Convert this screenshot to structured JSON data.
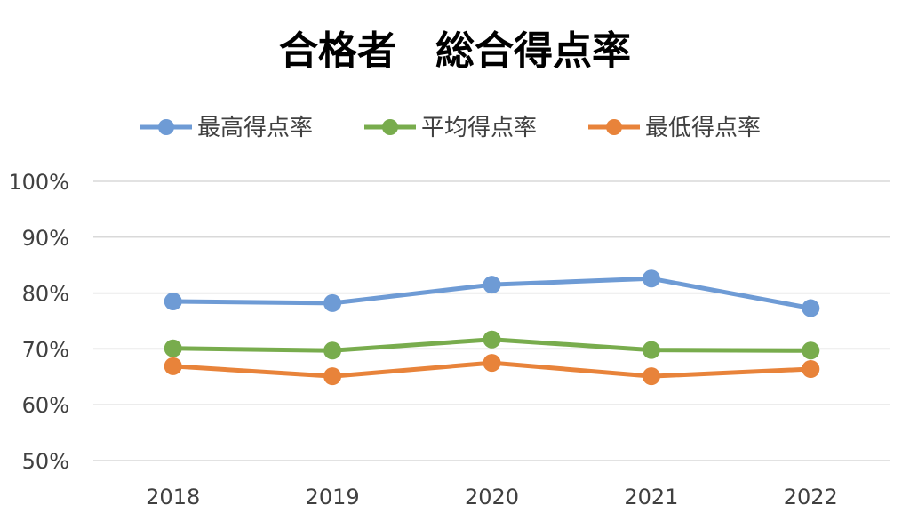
{
  "chart_data": {
    "type": "line",
    "title": "合格者　総合得点率",
    "categories": [
      "2018",
      "2019",
      "2020",
      "2021",
      "2022"
    ],
    "series": [
      {
        "name": "最高得点率",
        "color": "#6E9BD5",
        "values": [
          78.5,
          78.2,
          81.5,
          82.6,
          77.3
        ]
      },
      {
        "name": "平均得点率",
        "color": "#78AC4D",
        "values": [
          70.1,
          69.7,
          71.7,
          69.8,
          69.7
        ]
      },
      {
        "name": "最低得点率",
        "color": "#E8833A",
        "values": [
          66.9,
          65.1,
          67.5,
          65.1,
          66.4
        ]
      }
    ],
    "ylim": [
      50,
      100
    ],
    "yticks": [
      "50%",
      "60%",
      "70%",
      "80%",
      "90%",
      "100%"
    ],
    "xlabel": "",
    "ylabel": "",
    "grid": true,
    "legend_position": "top"
  }
}
